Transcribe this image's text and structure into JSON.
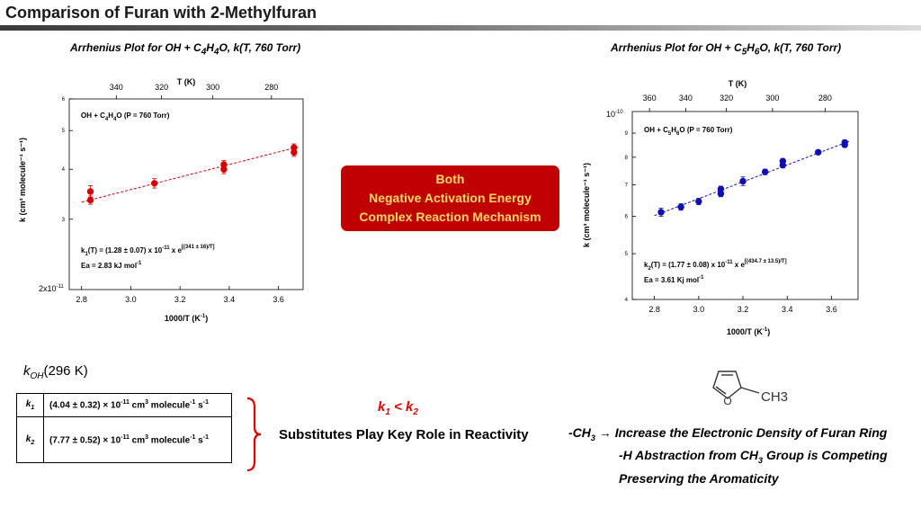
{
  "slide": {
    "title": "Comparison of Furan with 2-Methylfuran",
    "callout": {
      "line1": "Both",
      "line2": "Negative Activation Energy",
      "line3": "Complex Reaction Mechanism"
    },
    "koh": {
      "k": "k",
      "sub": "OH",
      "temp": "(296 K)"
    },
    "rate_table": [
      {
        "name": "k",
        "sub": "1",
        "value": "(4.04 ± 0.32) × 10",
        "exp": "-11",
        "unit": " cm",
        "unit_exp": "3",
        "unit2": " molecule",
        "unit2_exp": "-1",
        "unit3": " s",
        "unit3_exp": "-1"
      },
      {
        "name": "k",
        "sub": "2",
        "value": "(7.77 ± 0.52) × 10",
        "exp": "-11",
        "unit": " cm",
        "unit_exp": "3",
        "unit2": " molecule",
        "unit2_exp": "-1",
        "unit3": " s",
        "unit3_exp": "-1"
      }
    ],
    "comparison": {
      "a": "k",
      "a_sub": "1",
      "op": " < ",
      "b": "k",
      "b_sub": "2"
    },
    "substitutes": "Substitutes Play Key Role in Reactivity",
    "notes": {
      "ch3": "-CH",
      "ch3_sub": "3",
      "arrow": " → ",
      "line1": "Increase the Electronic  Density of Furan Ring",
      "line2a": "-H Abstraction from CH",
      "line2_sub": "3",
      "line2b": " Group is Competing",
      "line3": "Preserving the Aromaticity"
    },
    "molecule_label": "CH3"
  },
  "chart_data": [
    {
      "type": "scatter",
      "title": "Arrhenius Plot for OH + C4H4O, k(T, 760 Torr)",
      "title_parts": {
        "a": "Arrhenius Plot for OH + C",
        "s1": "4",
        "b": "H",
        "s2": "4",
        "c": "O, k(T, 760 Torr)"
      },
      "xlabel": "1000/T (K",
      "xlabel_sup": "-1",
      "xlabel_end": ")",
      "ylabel": "k (cm³ molecule⁻¹ s⁻¹)",
      "top_axis_label": "T (K)",
      "top_ticks": [
        "340",
        "320",
        "300",
        "280"
      ],
      "top_tick_values": [
        340,
        320,
        300,
        280
      ],
      "x_ticks": [
        "2.8",
        "3.0",
        "3.2",
        "3.4",
        "3.6"
      ],
      "x_tick_values": [
        2.8,
        3.0,
        3.2,
        3.4,
        3.6
      ],
      "y_ticks": [
        "6",
        "5",
        "4",
        "3"
      ],
      "y_tick_values": [
        6,
        5,
        4,
        3
      ],
      "y_min_label": "2x10",
      "y_min_exp": "-11",
      "xlim": [
        2.75,
        3.7
      ],
      "ylim": [
        2.0,
        6.0
      ],
      "yscale": "log",
      "y_unit_multiplier": 1e-11,
      "legend": "OH + C4H4O (P = 760 Torr)",
      "legend_parts": {
        "a": "OH + C",
        "s1": "4",
        "b": "H",
        "s2": "4",
        "c": "O (P = 760 Torr)"
      },
      "equation": {
        "a": "k",
        "s1": "1",
        "b": "(T) = (1.28 ± 0.07) x 10",
        "e1": "-11",
        "c": " x e",
        "e2": "[(341 ± 16)/T]"
      },
      "ea": {
        "a": "Ea = 2.83 kJ mol",
        "e": "-1"
      },
      "color": "#d40000",
      "points": [
        {
          "x": 2.836,
          "y": 3.52,
          "err": 0.12
        },
        {
          "x": 2.836,
          "y": 3.35,
          "err": 0.08
        },
        {
          "x": 3.096,
          "y": 3.69,
          "err": 0.1
        },
        {
          "x": 3.378,
          "y": 4.11,
          "err": 0.1
        },
        {
          "x": 3.378,
          "y": 4.0,
          "err": 0.1
        },
        {
          "x": 3.663,
          "y": 4.53,
          "err": 0.1
        },
        {
          "x": 3.663,
          "y": 4.41,
          "err": 0.1
        }
      ],
      "fit": {
        "x": [
          2.8,
          3.68
        ],
        "y": [
          3.31,
          4.55
        ]
      }
    },
    {
      "type": "scatter",
      "title": "Arrhenius Plot for OH + C5H6O, k(T, 760 Torr)",
      "title_parts": {
        "a": "Arrhenius Plot for OH + C",
        "s1": "5",
        "b": "H",
        "s2": "6",
        "c": "O, k(T, 760 Torr)"
      },
      "xlabel": "1000/T (K",
      "xlabel_sup": "-1",
      "xlabel_end": ")",
      "ylabel": "k (cm³ molecule⁻¹ s⁻¹)",
      "top_axis_label": "T (K)",
      "top_ticks": [
        "360",
        "340",
        "320",
        "300",
        "280"
      ],
      "top_tick_values": [
        360,
        340,
        320,
        300,
        280
      ],
      "x_ticks": [
        "2.8",
        "3.0",
        "3.2",
        "3.4",
        "3.6"
      ],
      "x_tick_values": [
        2.8,
        3.0,
        3.2,
        3.4,
        3.6
      ],
      "y_ticks": [
        "9",
        "8",
        "7",
        "6",
        "5",
        "4"
      ],
      "y_tick_values": [
        9,
        8,
        7,
        6,
        5,
        4
      ],
      "y_max_label": "10",
      "y_max_exp": "-10",
      "xlim": [
        2.7,
        3.72
      ],
      "ylim": [
        4.0,
        10.0
      ],
      "yscale": "log",
      "y_unit_multiplier": 1e-11,
      "legend": "OH + C5H6O (P = 760 Torr)",
      "legend_parts": {
        "a": "OH + C",
        "s1": "5",
        "b": "H",
        "s2": "6",
        "c": "O (P = 760 Torr)"
      },
      "equation": {
        "a": "k",
        "s1": "2",
        "b": "(T) = (1.77 ± 0.08) x 10",
        "e1": "-11",
        "c": " x e",
        "e2": "[(434.7 ± 13.5)/T]"
      },
      "ea": {
        "a": "Ea = 3.61 Kj mol",
        "e": "-1"
      },
      "color": "#1010b0",
      "points": [
        {
          "x": 2.83,
          "y": 6.12,
          "err": 0.12
        },
        {
          "x": 2.92,
          "y": 6.28,
          "err": 0.1
        },
        {
          "x": 3.0,
          "y": 6.45,
          "err": 0.1
        },
        {
          "x": 3.1,
          "y": 6.7,
          "err": 0.1
        },
        {
          "x": 3.1,
          "y": 6.85,
          "err": 0.1
        },
        {
          "x": 3.2,
          "y": 7.12,
          "err": 0.15
        },
        {
          "x": 3.3,
          "y": 7.45,
          "err": 0.1
        },
        {
          "x": 3.38,
          "y": 7.7,
          "err": 0.1
        },
        {
          "x": 3.38,
          "y": 7.85,
          "err": 0.1
        },
        {
          "x": 3.54,
          "y": 8.2,
          "err": 0.08
        },
        {
          "x": 3.66,
          "y": 8.5,
          "err": 0.1
        },
        {
          "x": 3.66,
          "y": 8.6,
          "err": 0.1
        }
      ],
      "fit": {
        "x": [
          2.8,
          3.68
        ],
        "y": [
          6.02,
          8.65
        ]
      }
    }
  ]
}
